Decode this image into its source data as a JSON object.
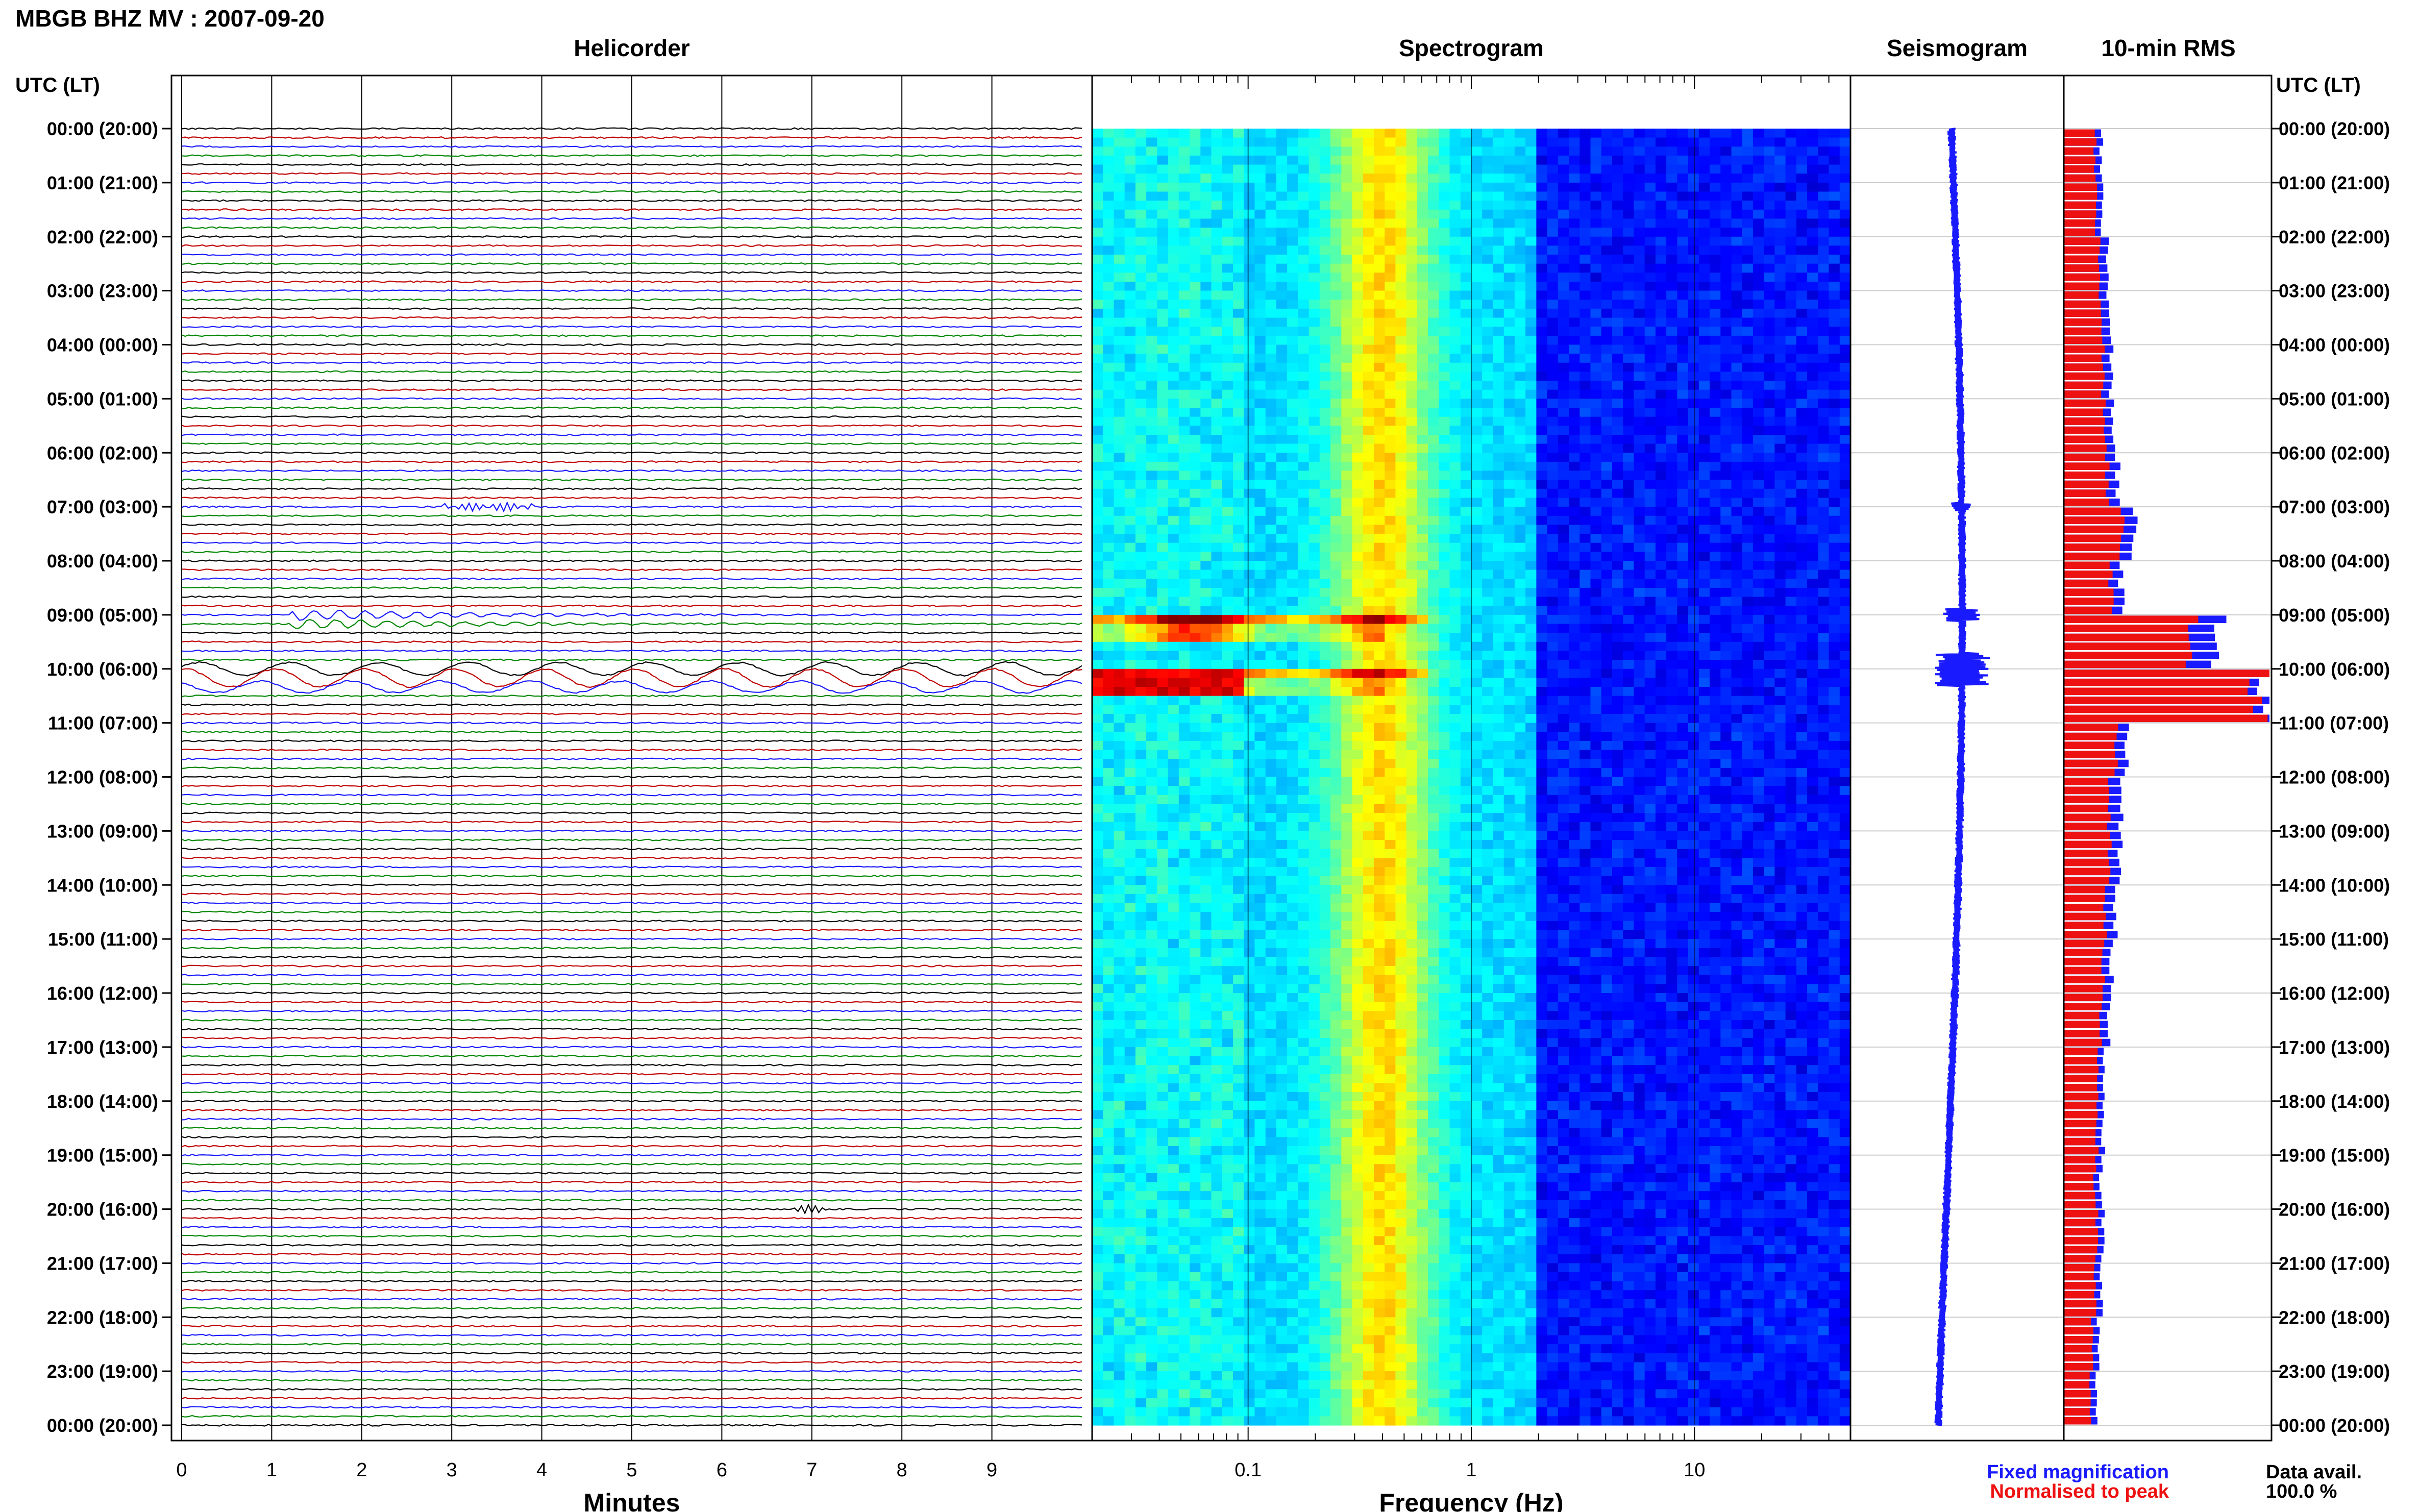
{
  "header": {
    "station_title": "MBGB BHZ MV : 2007-09-20",
    "time_axis_label": "UTC (LT)"
  },
  "panels": {
    "helicorder": "Helicorder",
    "spectrogram": "Spectrogram",
    "seismogram": "Seismogram",
    "rms": "10-min RMS"
  },
  "footer": {
    "fixed_label": "Fixed magnification",
    "normalised_label": "Normalised to peak",
    "data_avail_label": "Data avail.",
    "data_avail_value": "100.0 %"
  },
  "colors": {
    "fixed": "#1a1aff",
    "normalised": "#ee1111",
    "trace_palette": [
      "#000000",
      "#c00000",
      "#1a1aff",
      "#008800"
    ]
  },
  "chart_data": {
    "type": "heatmap",
    "hour_labels": [
      "00:00 (20:00)",
      "01:00 (21:00)",
      "02:00 (22:00)",
      "03:00 (23:00)",
      "04:00 (00:00)",
      "05:00 (01:00)",
      "06:00 (02:00)",
      "07:00 (03:00)",
      "08:00 (04:00)",
      "09:00 (05:00)",
      "10:00 (06:00)",
      "11:00 (07:00)",
      "12:00 (08:00)",
      "13:00 (09:00)",
      "14:00 (10:00)",
      "15:00 (11:00)",
      "16:00 (12:00)",
      "17:00 (13:00)",
      "18:00 (14:00)",
      "19:00 (15:00)",
      "20:00 (16:00)",
      "21:00 (17:00)",
      "22:00 (18:00)",
      "23:00 (19:00)",
      "00:00 (20:00)"
    ],
    "helicorder": {
      "xlabel": "Minutes",
      "xticks": [
        "0",
        "1",
        "2",
        "3",
        "4",
        "5",
        "6",
        "7",
        "8",
        "9"
      ],
      "xlim": [
        0,
        10
      ],
      "rows_per_hour": 6,
      "events": [
        {
          "hour": 7.0,
          "minute_start": 2.9,
          "minute_end": 3.9,
          "amplitude": 0.35
        },
        {
          "hour": 9.0,
          "minute_start": 1.2,
          "minute_end": 9.9,
          "amplitude": 0.6
        },
        {
          "hour": 10.0,
          "minute_start": 0.0,
          "minute_end": 10.0,
          "amplitude": 1.0
        },
        {
          "hour": 20.0,
          "minute_start": 6.8,
          "minute_end": 7.2,
          "amplitude": 0.3
        }
      ]
    },
    "spectrogram": {
      "xlabel": "Frequency (Hz)",
      "xscale": "log",
      "xlim": [
        0.02,
        50
      ],
      "xticks": [
        "0.1",
        "1",
        "10"
      ],
      "peak_band_hz": 0.4,
      "event_hours": [
        9.0,
        10.0
      ]
    },
    "rms": {
      "series": [
        {
          "name": "Fixed magnification",
          "values": [
            0.18,
            0.19,
            0.21,
            0.22,
            0.23,
            0.24,
            0.26,
            0.34,
            0.28,
            0.75,
            1.0,
            0.3,
            0.28,
            0.27,
            0.25,
            0.23,
            0.22,
            0.2,
            0.19,
            0.18,
            0.19,
            0.18,
            0.17,
            0.16
          ]
        },
        {
          "name": "Normalised to peak",
          "values": [
            0.15,
            0.16,
            0.17,
            0.18,
            0.19,
            0.2,
            0.21,
            0.28,
            0.23,
            0.62,
            0.95,
            0.25,
            0.22,
            0.22,
            0.2,
            0.19,
            0.18,
            0.17,
            0.16,
            0.15,
            0.16,
            0.15,
            0.14,
            0.13
          ]
        }
      ]
    }
  }
}
